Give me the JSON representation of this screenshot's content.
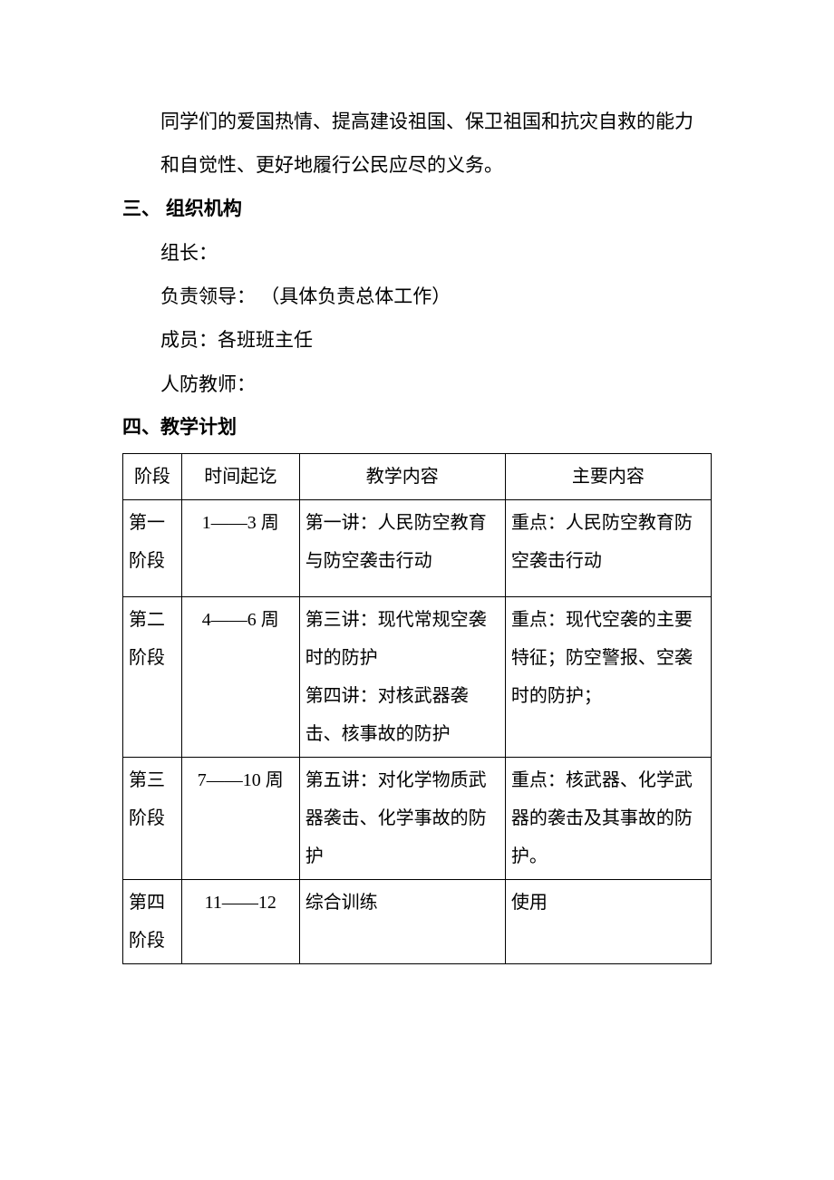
{
  "intro": {
    "line1": "同学们的爱国热情、提高建设祖国、保卫祖国和抗灾自救的能力",
    "line2": "和自觉性、更好地履行公民应尽的义务。"
  },
  "section3": {
    "heading": "三、  组织机构",
    "leader": "组长：",
    "inCharge": "负责领导：  （具体负责总体工作）",
    "members": "成员：各班班主任",
    "teachers": "人防教师："
  },
  "section4": {
    "heading": "四、教学计划",
    "columns": [
      "阶段",
      "时间起讫",
      "教学内容",
      "主要内容"
    ],
    "rows": [
      {
        "stage": "第一阶段",
        "time": "1——3 周",
        "content": "第一讲：人民防空教育与防空袭击行动",
        "key": "重点：人民防空教育防空袭击行动"
      },
      {
        "stage": "第二阶段",
        "time": "4——6 周",
        "content": "第三讲：现代常规空袭时的防护\n第四讲：对核武器袭击、核事故的防护",
        "key": "重点：现代空袭的主要特征；防空警报、空袭时的防护；"
      },
      {
        "stage": "第三阶段",
        "time": "7——10 周",
        "content": "第五讲：对化学物质武器袭击、化学事故的防护",
        "key": "重点：核武器、化学武器的袭击及其事故的防护。"
      },
      {
        "stage": "第四阶段",
        "time": "11——12",
        "content": "综合训练",
        "key": "使用"
      }
    ]
  }
}
